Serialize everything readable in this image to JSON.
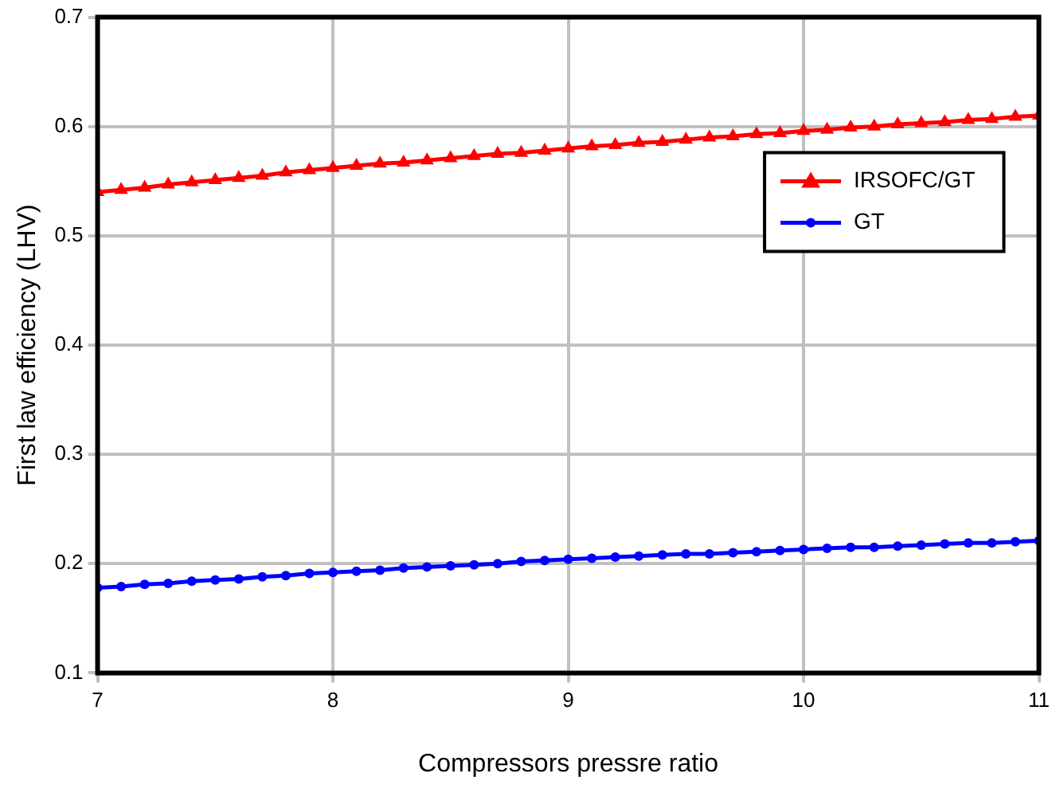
{
  "chart_data": {
    "type": "line",
    "xlabel": "Compressors pressre ratio",
    "ylabel": "First law efficiency (LHV)",
    "x": [
      7,
      7.1,
      7.2,
      7.3,
      7.4,
      7.5,
      7.6,
      7.7,
      7.8,
      7.9,
      8,
      8.1,
      8.2,
      8.3,
      8.4,
      8.5,
      8.6,
      8.7,
      8.8,
      8.9,
      9,
      9.1,
      9.2,
      9.3,
      9.4,
      9.5,
      9.6,
      9.7,
      9.8,
      9.9,
      10,
      10.1,
      10.2,
      10.3,
      10.4,
      10.5,
      10.6,
      10.7,
      10.8,
      10.9,
      11
    ],
    "series": [
      {
        "name": "IRSOFC/GT",
        "color": "#ff0000",
        "marker": "triangle",
        "values": [
          0.54,
          0.542,
          0.544,
          0.547,
          0.549,
          0.551,
          0.553,
          0.555,
          0.558,
          0.56,
          0.562,
          0.564,
          0.566,
          0.567,
          0.569,
          0.571,
          0.573,
          0.575,
          0.576,
          0.578,
          0.58,
          0.582,
          0.583,
          0.585,
          0.586,
          0.588,
          0.59,
          0.591,
          0.593,
          0.594,
          0.596,
          0.597,
          0.599,
          0.6,
          0.602,
          0.603,
          0.604,
          0.606,
          0.607,
          0.609,
          0.61
        ]
      },
      {
        "name": "GT",
        "color": "#0000ff",
        "marker": "circle",
        "values": [
          0.178,
          0.179,
          0.181,
          0.182,
          0.184,
          0.185,
          0.186,
          0.188,
          0.189,
          0.191,
          0.192,
          0.193,
          0.194,
          0.196,
          0.197,
          0.198,
          0.199,
          0.2,
          0.202,
          0.203,
          0.204,
          0.205,
          0.206,
          0.207,
          0.208,
          0.209,
          0.209,
          0.21,
          0.211,
          0.212,
          0.213,
          0.214,
          0.215,
          0.215,
          0.216,
          0.217,
          0.218,
          0.219,
          0.219,
          0.22,
          0.221
        ]
      }
    ],
    "xlim": [
      7,
      11
    ],
    "xticks": [
      7,
      8,
      9,
      10,
      11
    ],
    "ylim": [
      0.1,
      0.7
    ],
    "yticks": [
      0.1,
      0.2,
      0.3,
      0.4,
      0.5,
      0.6,
      0.7
    ],
    "grid": true,
    "legend": "top right",
    "line_style": "solid"
  }
}
